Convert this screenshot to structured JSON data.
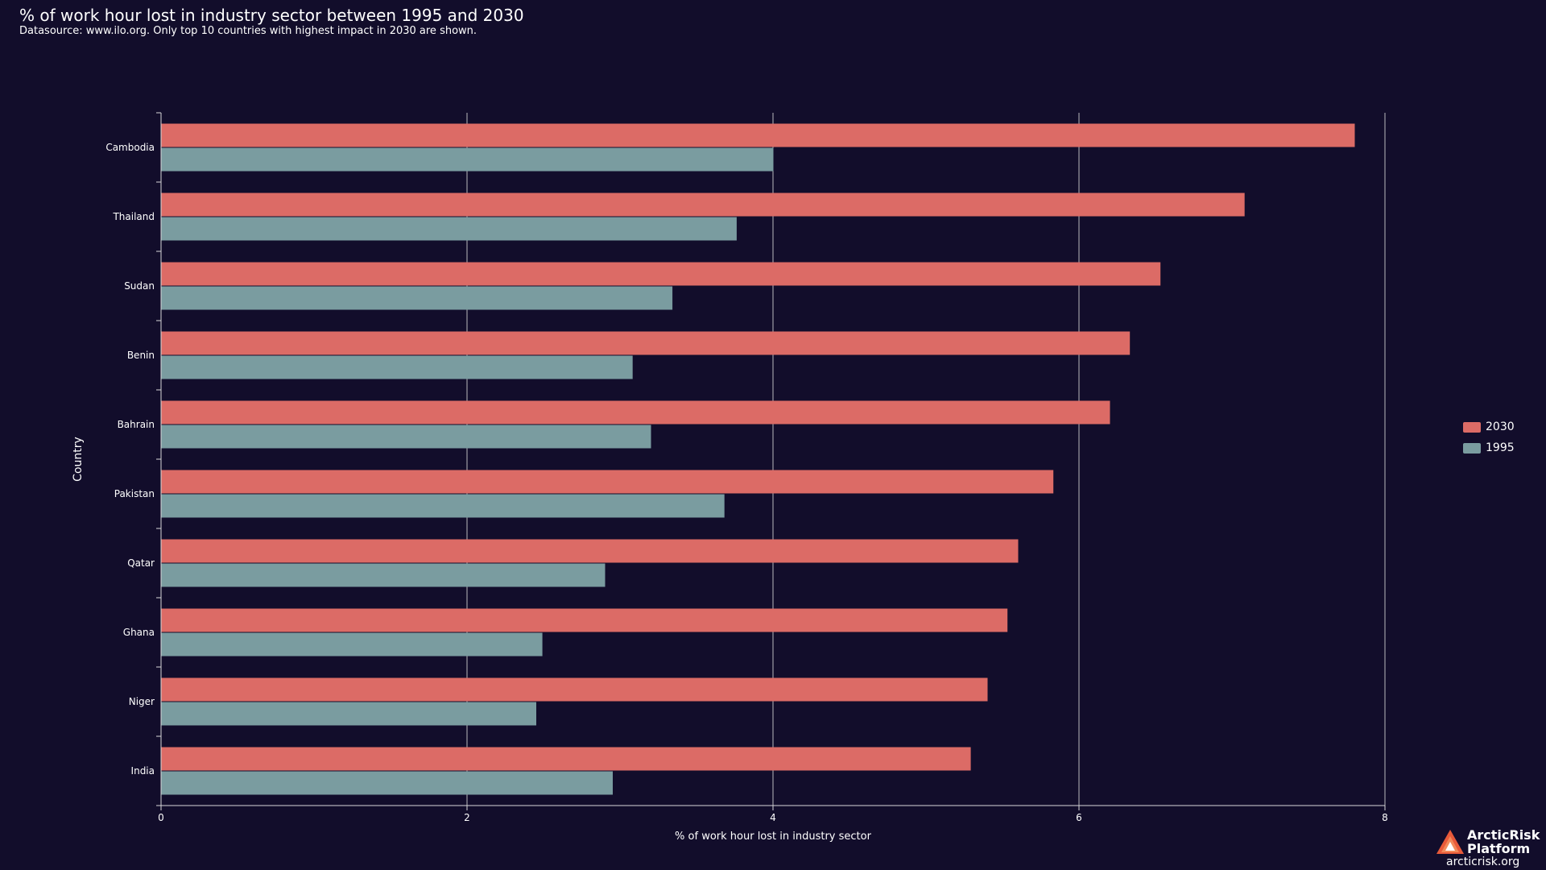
{
  "title": "% of work hour lost in industry sector between 1995 and 2030",
  "subtitle": "Datasource: www.ilo.org. Only top 10 countries with highest impact in 2030 are shown.",
  "colors": {
    "background": "#120d2b",
    "series_2030": "#dc6b66",
    "series_1995": "#7a9ca0",
    "grid": "#d8d8d8",
    "text": "#ffffff"
  },
  "legend": {
    "items": [
      {
        "label": "2030",
        "color": "#dc6b66"
      },
      {
        "label": "1995",
        "color": "#7a9ca0"
      }
    ]
  },
  "logo": {
    "name_line1": "ArcticRisk",
    "name_line2": "Platform",
    "url": "arcticrisk.org"
  },
  "chart_data": {
    "type": "bar",
    "orientation": "horizontal",
    "title": "% of work hour lost in industry sector between 1995 and 2030",
    "xlabel": "% of work hour lost in industry sector",
    "ylabel": "Country",
    "xlim": [
      0,
      8
    ],
    "xticks": [
      0,
      2,
      4,
      6,
      8
    ],
    "grid": true,
    "legend_position": "right",
    "categories": [
      "Cambodia",
      "Thailand",
      "Sudan",
      "Benin",
      "Bahrain",
      "Pakistan",
      "Qatar",
      "Ghana",
      "Niger",
      "India"
    ],
    "series": [
      {
        "name": "2030",
        "values": [
          7.8,
          7.08,
          6.53,
          6.33,
          6.2,
          5.83,
          5.6,
          5.53,
          5.4,
          5.29
        ]
      },
      {
        "name": "1995",
        "values": [
          4.0,
          3.76,
          3.34,
          3.08,
          3.2,
          3.68,
          2.9,
          2.49,
          2.45,
          2.95
        ]
      }
    ]
  }
}
